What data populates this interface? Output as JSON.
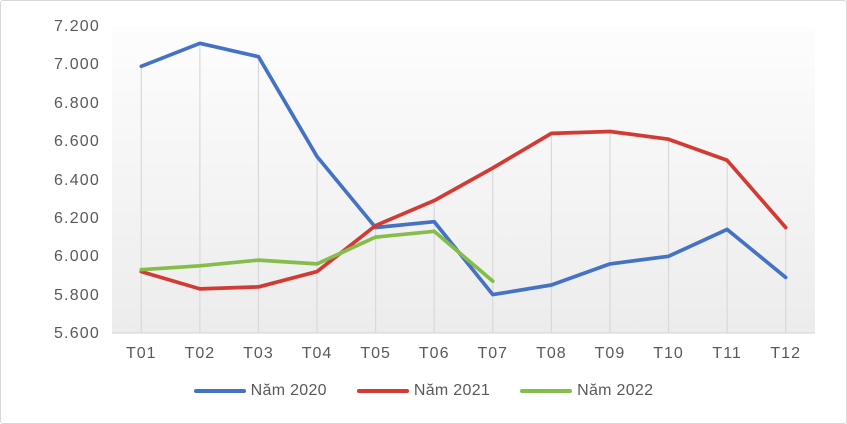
{
  "page": {
    "background_color": "#FFFFFF",
    "border_color": "#D7D7D7",
    "text_color": "#595959"
  },
  "chart_data": {
    "type": "line",
    "title": "",
    "xlabel": "",
    "ylabel": "",
    "categories": [
      "T01",
      "T02",
      "T03",
      "T04",
      "T05",
      "T06",
      "T07",
      "T08",
      "T09",
      "T10",
      "T11",
      "T12"
    ],
    "series": [
      {
        "name": "Năm 2020",
        "color": "#4472C4",
        "values": [
          6990,
          7110,
          7040,
          6520,
          6150,
          6180,
          5800,
          5850,
          5960,
          6000,
          6140,
          5890
        ]
      },
      {
        "name": "Năm 2021",
        "color": "#D23B34",
        "values": [
          5920,
          5830,
          5840,
          5920,
          6160,
          6290,
          6460,
          6640,
          6650,
          6610,
          6500,
          6150
        ]
      },
      {
        "name": "Năm 2022",
        "color": "#84BD49",
        "values": [
          5930,
          5950,
          5980,
          5960,
          6100,
          6130,
          5870,
          null,
          null,
          null,
          null,
          null
        ]
      }
    ],
    "y_axis": {
      "min": 5600,
      "max": 7200,
      "tick_values": [
        7200,
        7000,
        6800,
        6600,
        6400,
        6200,
        6000,
        5800,
        5600
      ],
      "tick_labels": [
        "7.200",
        "7.000",
        "6.800",
        "6.600",
        "6.400",
        "6.200",
        "6.000",
        "5.800",
        "5.600"
      ]
    },
    "grid": "vertical drop lines from topmost series point down to x-axis, no horizontal gridlines",
    "legend_position": "bottom-center",
    "gridline_color": "#D9D9D9",
    "axis_line_color": "#D9D9D9",
    "plot_bg_gradient_top": "#FDFDFD",
    "plot_bg_gradient_bottom": "#ECECEC"
  }
}
